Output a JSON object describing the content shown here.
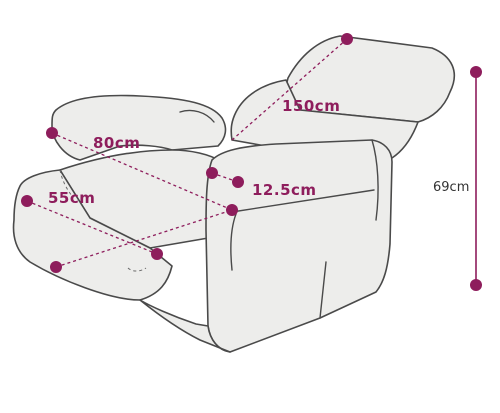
{
  "colors": {
    "accent": "#8e1d5c",
    "chair_fill": "#ededeb",
    "chair_outline": "#4a4a4a"
  },
  "dimensions": {
    "overall_length": "150cm",
    "seat_depth": "80cm",
    "seat_width": "55cm",
    "armrest_height": "12.5cm",
    "total_height": "69cm"
  }
}
